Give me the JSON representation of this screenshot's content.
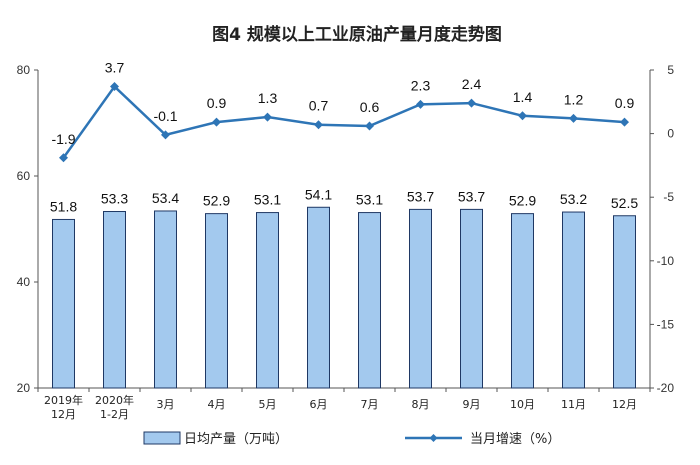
{
  "chart_data": {
    "type": "bar",
    "title": "图4  规模以上工业原油产量月度走势图",
    "categories": [
      [
        "2019年",
        "12月"
      ],
      [
        "2020年",
        "1-2月"
      ],
      [
        "3月"
      ],
      [
        "4月"
      ],
      [
        "5月"
      ],
      [
        "6月"
      ],
      [
        "7月"
      ],
      [
        "8月"
      ],
      [
        "9月"
      ],
      [
        "10月"
      ],
      [
        "11月"
      ],
      [
        "12月"
      ]
    ],
    "series": [
      {
        "name": "日均产量（万吨）",
        "type": "bar",
        "axis": "left",
        "values": [
          51.8,
          53.3,
          53.4,
          52.9,
          53.1,
          54.1,
          53.1,
          53.7,
          53.7,
          52.9,
          53.2,
          52.5
        ],
        "labels": [
          "51.8",
          "53.3",
          "53.4",
          "52.9",
          "53.1",
          "54.1",
          "53.1",
          "53.7",
          "53.7",
          "52.9",
          "53.2",
          "52.5"
        ]
      },
      {
        "name": "当月增速（%）",
        "type": "line",
        "axis": "right",
        "values": [
          -1.9,
          3.7,
          -0.1,
          0.9,
          1.3,
          0.7,
          0.6,
          2.3,
          2.4,
          1.4,
          1.2,
          0.9
        ],
        "labels": [
          "-1.9",
          "3.7",
          "-0.1",
          "0.9",
          "1.3",
          "0.7",
          "0.6",
          "2.3",
          "2.4",
          "1.4",
          "1.2",
          "0.9"
        ]
      }
    ],
    "left_axis": {
      "ylim": [
        20,
        80
      ],
      "ticks": [
        "20",
        "40",
        "60",
        "80"
      ]
    },
    "right_axis": {
      "ylim": [
        -20,
        5
      ],
      "ticks": [
        "-20",
        "-15",
        "-10",
        "-5",
        "0",
        "5"
      ]
    },
    "grid": false,
    "legend_position": "bottom",
    "colors": {
      "bar_fill": "#a3c9ee",
      "bar_stroke": "#1f3864",
      "line": "#2e75b6",
      "axis": "#555555"
    }
  }
}
